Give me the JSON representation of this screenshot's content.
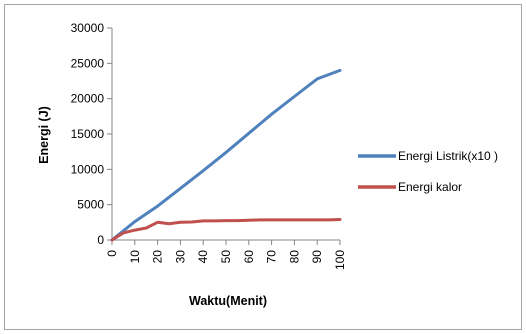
{
  "chart_data": {
    "type": "line",
    "xlabel": "Waktu(Menit)",
    "ylabel": "Energi (J)",
    "x": [
      0,
      10,
      20,
      30,
      40,
      50,
      60,
      70,
      80,
      90,
      100
    ],
    "xlim": [
      0,
      100
    ],
    "ylim": [
      0,
      30000
    ],
    "yticks": [
      0,
      5000,
      10000,
      15000,
      20000,
      25000,
      30000
    ],
    "grid": false,
    "legend_position": "right",
    "series": [
      {
        "name": "Energi Listrik(x10 )",
        "color": "#4f81bd",
        "x": [
          0,
          10,
          20,
          30,
          40,
          50,
          60,
          70,
          80,
          90,
          100
        ],
        "values": [
          0,
          2600,
          4800,
          7300,
          9800,
          12400,
          15100,
          17800,
          20300,
          22800,
          24000
        ]
      },
      {
        "name": "Energi kalor",
        "color": "#c0504d",
        "x": [
          0,
          5,
          10,
          15,
          20,
          25,
          30,
          35,
          40,
          45,
          50,
          55,
          60,
          65,
          70,
          75,
          80,
          85,
          90,
          95,
          100
        ],
        "values": [
          0,
          1000,
          1400,
          1700,
          2500,
          2300,
          2500,
          2550,
          2700,
          2700,
          2750,
          2750,
          2800,
          2850,
          2850,
          2850,
          2850,
          2850,
          2850,
          2850,
          2900
        ]
      }
    ]
  }
}
